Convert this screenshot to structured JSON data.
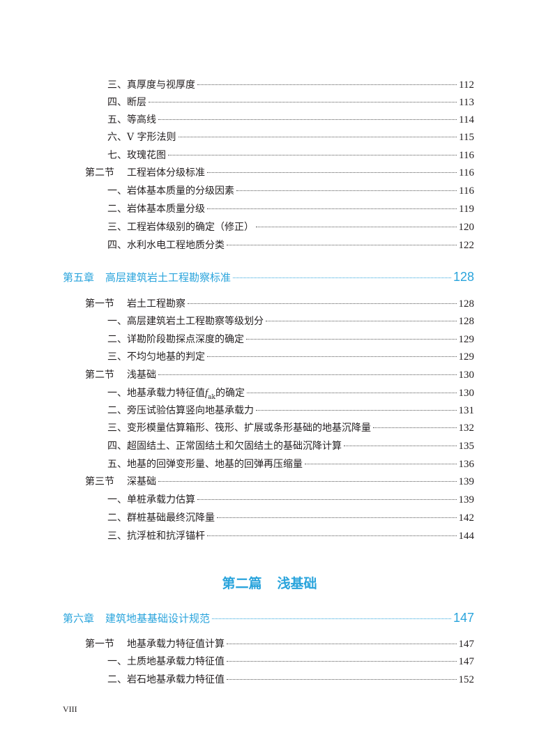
{
  "accent_color": "#2aa4dc",
  "entries_top": [
    {
      "label": "三、真厚度与视厚度",
      "page": "112"
    },
    {
      "label": "四、断层",
      "page": "113"
    },
    {
      "label": "五、等高线",
      "page": "114"
    },
    {
      "label": "六、V 字形法则",
      "page": "115"
    },
    {
      "label": "七、玫瑰花图",
      "page": "116"
    }
  ],
  "section_ch4_2": {
    "number": "第二节",
    "title": "工程岩体分级标准",
    "page": "116"
  },
  "entries_ch4_2": [
    {
      "label": "一、岩体基本质量的分级因素",
      "page": "116"
    },
    {
      "label": "二、岩体基本质量分级",
      "page": "119"
    },
    {
      "label": "三、工程岩体级别的确定（修正）",
      "page": "120"
    },
    {
      "label": "四、水利水电工程地质分类",
      "page": "122"
    }
  ],
  "chapter5": {
    "number": "第五章",
    "title": "高层建筑岩土工程勘察标准",
    "page": "128"
  },
  "ch5_sec1": {
    "number": "第一节",
    "title": "岩土工程勘察",
    "page": "128"
  },
  "ch5_sec1_items": [
    {
      "label": "一、高层建筑岩土工程勘察等级划分",
      "page": "128"
    },
    {
      "label": "二、详勘阶段勘探点深度的确定",
      "page": "129"
    },
    {
      "label": "三、不均匀地基的判定",
      "page": "129"
    }
  ],
  "ch5_sec2": {
    "number": "第二节",
    "title": "浅基础",
    "page": "130"
  },
  "ch5_sec2_first": {
    "before": "一、地基承载力特征值",
    "var": "f",
    "sub": "ak",
    "after": "的确定",
    "page": "130"
  },
  "ch5_sec2_items": [
    {
      "label": "二、旁压试验估算竖向地基承载力",
      "page": "131"
    },
    {
      "label": "三、变形模量估算箱形、筏形、扩展或条形基础的地基沉降量",
      "page": "132"
    },
    {
      "label": "四、超固结土、正常固结土和欠固结土的基础沉降计算",
      "page": "135"
    },
    {
      "label": "五、地基的回弹变形量、地基的回弹再压缩量",
      "page": "136"
    }
  ],
  "ch5_sec3": {
    "number": "第三节",
    "title": "深基础",
    "page": "139"
  },
  "ch5_sec3_items": [
    {
      "label": "一、单桩承载力估算",
      "page": "139"
    },
    {
      "label": "二、群桩基础最终沉降量",
      "page": "142"
    },
    {
      "label": "三、抗浮桩和抗浮锚杆",
      "page": "144"
    }
  ],
  "part2": {
    "number": "第二篇",
    "title": "浅基础"
  },
  "chapter6": {
    "number": "第六章",
    "title": "建筑地基基础设计规范",
    "page": "147"
  },
  "ch6_sec1": {
    "number": "第一节",
    "title": "地基承载力特征值计算",
    "page": "147"
  },
  "ch6_sec1_items": [
    {
      "label": "一、土质地基承载力特征值",
      "page": "147"
    },
    {
      "label": "二、岩石地基承载力特征值",
      "page": "152"
    }
  ],
  "footer": {
    "page_number": "VIII"
  }
}
